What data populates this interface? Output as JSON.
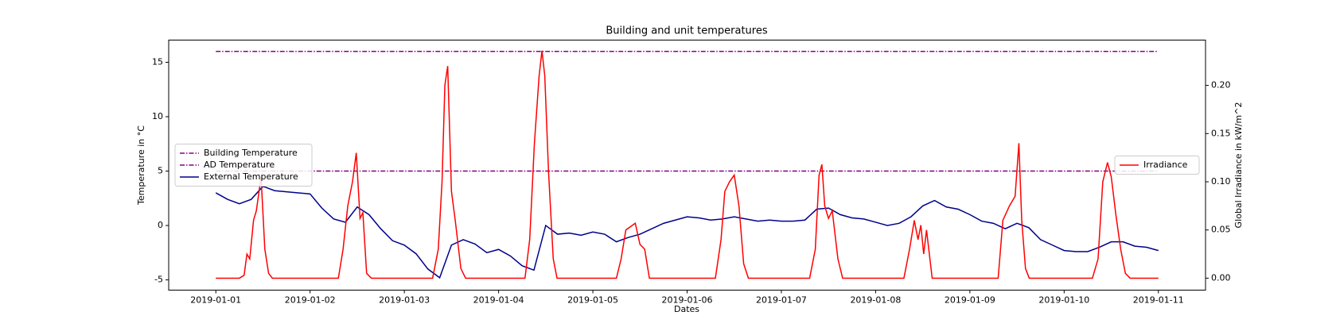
{
  "chart_data": {
    "type": "line",
    "title": "Building and unit temperatures",
    "x_label": "Dates",
    "y_label": "Temperature in °C",
    "y2_label": "Global Irradiance in kW/m^2",
    "xlim": [
      -0.5,
      10.5
    ],
    "xticks": [
      {
        "value": 0,
        "label": "2019-01-01"
      },
      {
        "value": 1,
        "label": "2019-01-02"
      },
      {
        "value": 2,
        "label": "2019-01-03"
      },
      {
        "value": 3,
        "label": "2019-01-04"
      },
      {
        "value": 4,
        "label": "2019-01-05"
      },
      {
        "value": 5,
        "label": "2019-01-06"
      },
      {
        "value": 6,
        "label": "2019-01-07"
      },
      {
        "value": 7,
        "label": "2019-01-08"
      },
      {
        "value": 8,
        "label": "2019-01-09"
      },
      {
        "value": 9,
        "label": "2019-01-10"
      },
      {
        "value": 10,
        "label": "2019-01-11"
      }
    ],
    "ylim": [
      -5.94,
      17.04
    ],
    "yticks": [
      -5,
      0,
      5,
      10,
      15
    ],
    "y2lim": [
      -0.0124,
      0.247
    ],
    "y2ticks": [
      {
        "value": 0,
        "label": "0.00"
      },
      {
        "value": 0.05,
        "label": "0.05"
      },
      {
        "value": 0.1,
        "label": "0.10"
      },
      {
        "value": 0.15,
        "label": "0.15"
      },
      {
        "value": 0.2,
        "label": "0.20"
      }
    ],
    "grid": false,
    "legend": "center left",
    "legend2": "center right",
    "series": [
      {
        "name": "Building Temperature",
        "color": "#8b008b",
        "linestyle": "-.",
        "x": [
          0,
          10
        ],
        "values": [
          16,
          16
        ]
      },
      {
        "name": "AD Temperature",
        "color": "#800080",
        "linestyle": "-.",
        "x": [
          0,
          10
        ],
        "values": [
          5,
          5
        ]
      },
      {
        "name": "External Temperature",
        "color": "#00008b",
        "linestyle": "-",
        "x": [
          0,
          0.125,
          0.25,
          0.375,
          0.5,
          0.625,
          0.75,
          0.875,
          1,
          1.125,
          1.25,
          1.375,
          1.5,
          1.625,
          1.75,
          1.875,
          2,
          2.125,
          2.25,
          2.375,
          2.5,
          2.625,
          2.75,
          2.875,
          3,
          3.125,
          3.25,
          3.375,
          3.5,
          3.625,
          3.75,
          3.875,
          4,
          4.125,
          4.25,
          4.375,
          4.5,
          4.625,
          4.75,
          4.875,
          5,
          5.125,
          5.25,
          5.375,
          5.5,
          5.625,
          5.75,
          5.875,
          6,
          6.125,
          6.25,
          6.375,
          6.5,
          6.625,
          6.75,
          6.875,
          7,
          7.125,
          7.25,
          7.375,
          7.5,
          7.625,
          7.75,
          7.875,
          8,
          8.125,
          8.25,
          8.375,
          8.5,
          8.625,
          8.75,
          8.875,
          9,
          9.125,
          9.25,
          9.375,
          9.5,
          9.625,
          9.75,
          9.875,
          10
        ],
        "values": [
          3.0,
          2.4,
          2.0,
          2.4,
          3.6,
          3.2,
          3.1,
          3.0,
          2.9,
          1.6,
          0.6,
          0.3,
          1.7,
          1.0,
          -0.3,
          -1.4,
          -1.8,
          -2.6,
          -4.0,
          -4.8,
          -1.8,
          -1.3,
          -1.7,
          -2.5,
          -2.2,
          -2.8,
          -3.7,
          -4.1,
          0.0,
          -0.8,
          -0.7,
          -0.9,
          -0.6,
          -0.8,
          -1.5,
          -1.1,
          -0.8,
          -0.3,
          0.2,
          0.5,
          0.8,
          0.7,
          0.5,
          0.6,
          0.8,
          0.6,
          0.4,
          0.5,
          0.4,
          0.4,
          0.5,
          1.5,
          1.6,
          1.0,
          0.7,
          0.6,
          0.3,
          0.0,
          0.2,
          0.8,
          1.8,
          2.3,
          1.7,
          1.5,
          1.0,
          0.4,
          0.2,
          -0.3,
          0.2,
          -0.2,
          -1.3,
          -1.8,
          -2.3,
          -2.4,
          -2.4,
          -2.0,
          -1.5,
          -1.5,
          -1.9,
          -2.0,
          -2.3
        ]
      },
      {
        "name": "Irradiance",
        "color": "#ff0000",
        "linestyle": "-",
        "axis": "y2",
        "x": [
          0,
          0.25,
          0.3,
          0.33,
          0.36,
          0.4,
          0.43,
          0.48,
          0.52,
          0.56,
          0.6,
          1.3,
          1.35,
          1.4,
          1.45,
          1.49,
          1.53,
          1.56,
          1.6,
          1.65,
          2.3,
          2.36,
          2.4,
          2.43,
          2.46,
          2.5,
          2.54,
          2.6,
          2.65,
          3.28,
          3.33,
          3.38,
          3.43,
          3.46,
          3.49,
          3.53,
          3.58,
          3.62,
          4.25,
          4.3,
          4.35,
          4.45,
          4.5,
          4.55,
          4.6,
          5.3,
          5.36,
          5.4,
          5.45,
          5.5,
          5.55,
          5.6,
          5.65,
          6.3,
          6.36,
          6.4,
          6.43,
          6.46,
          6.5,
          6.54,
          6.6,
          6.65,
          7.3,
          7.36,
          7.41,
          7.45,
          7.48,
          7.51,
          7.54,
          7.6,
          8.3,
          8.35,
          8.42,
          8.48,
          8.52,
          8.55,
          8.59,
          8.63,
          9.3,
          9.36,
          9.41,
          9.46,
          9.5,
          9.55,
          9.6,
          9.65,
          9.7,
          10
        ],
        "values": [
          0,
          0,
          0.003,
          0.025,
          0.02,
          0.06,
          0.07,
          0.105,
          0.03,
          0.005,
          0,
          0,
          0.03,
          0.075,
          0.1,
          0.13,
          0.062,
          0.068,
          0.005,
          0,
          0,
          0.03,
          0.1,
          0.2,
          0.22,
          0.09,
          0.06,
          0.01,
          0,
          0,
          0.04,
          0.14,
          0.21,
          0.236,
          0.21,
          0.11,
          0.02,
          0,
          0,
          0.02,
          0.05,
          0.057,
          0.035,
          0.03,
          0,
          0,
          0.04,
          0.09,
          0.1,
          0.107,
          0.075,
          0.015,
          0,
          0,
          0.03,
          0.107,
          0.118,
          0.075,
          0.062,
          0.07,
          0.02,
          0,
          0,
          0.03,
          0.06,
          0.04,
          0.055,
          0.025,
          0.05,
          0,
          0,
          0.06,
          0.075,
          0.085,
          0.14,
          0.06,
          0.01,
          0,
          0,
          0.02,
          0.1,
          0.12,
          0.105,
          0.065,
          0.03,
          0.005,
          0,
          0
        ]
      }
    ]
  }
}
